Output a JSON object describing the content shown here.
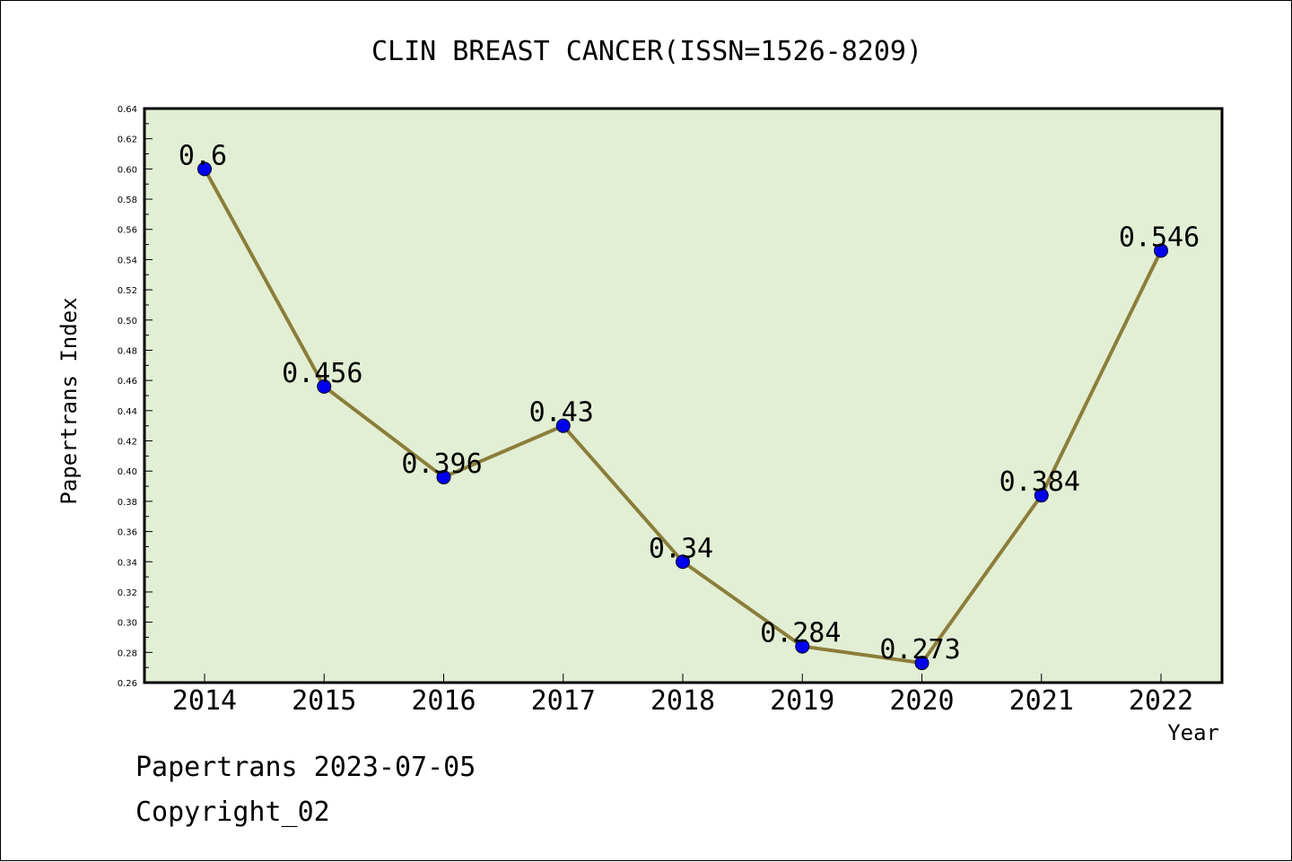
{
  "chart_data": {
    "type": "line",
    "title": "CLIN BREAST CANCER(ISSN=1526-8209)",
    "xlabel": "Year",
    "ylabel": "Papertrans Index",
    "categories": [
      "2014",
      "2015",
      "2016",
      "2017",
      "2018",
      "2019",
      "2020",
      "2021",
      "2022"
    ],
    "values": [
      0.6,
      0.456,
      0.396,
      0.43,
      0.34,
      0.284,
      0.273,
      0.384,
      0.546
    ],
    "data_labels": [
      "0.6",
      "0.456",
      "0.396",
      "0.43",
      "0.34",
      "0.284",
      "0.273",
      "0.384",
      "0.546"
    ],
    "ylim": [
      0.26,
      0.64
    ],
    "yticks": [
      "0.26",
      "0.28",
      "0.30",
      "0.32",
      "0.34",
      "0.36",
      "0.38",
      "0.40",
      "0.42",
      "0.44",
      "0.46",
      "0.48",
      "0.50",
      "0.52",
      "0.54",
      "0.56",
      "0.58",
      "0.60",
      "0.62",
      "0.64"
    ],
    "grid": false,
    "colors": {
      "plot_background": "#e2efd4",
      "line": "#8b7d3a",
      "marker": "#0000ee"
    }
  },
  "footer": {
    "line1": "Papertrans 2023-07-05",
    "line2": "Copyright_02"
  }
}
